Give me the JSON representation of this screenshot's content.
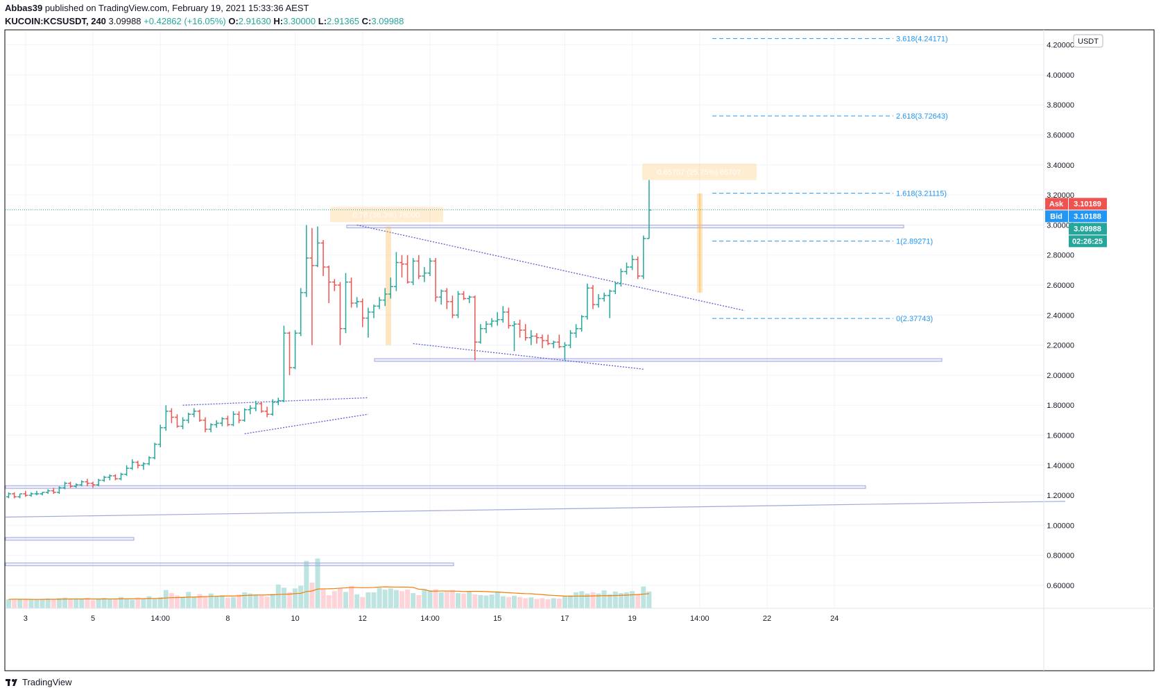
{
  "header": {
    "author": "Abbas39",
    "published_text": " published on TradingView.com, February 19, 2021 15:33:36 AEST",
    "symbol": "KUCOIN:KCSUSDT, 240",
    "last": "3.09988",
    "change": "+0.42862 (+16.05%)",
    "o_label": "O:",
    "o_value": "2.91630",
    "h_label": "H:",
    "h_value": "3.30000",
    "l_label": "L:",
    "l_value": "2.91365",
    "c_label": "C:",
    "c_value": "3.09988"
  },
  "footer": {
    "brand": "TradingView"
  },
  "colors": {
    "up": "#26a69a",
    "down": "#ef5350",
    "trend": "#5b5bd6",
    "fib": "#2196f3",
    "ma": "#f57c00",
    "ask": "#ef5350",
    "bid": "#2196f3"
  },
  "chart_data": {
    "type": "candlestick",
    "currency": "USDT",
    "price_ticks": [
      "0.60000",
      "0.80000",
      "1.00000",
      "1.20000",
      "1.40000",
      "1.60000",
      "1.80000",
      "2.00000",
      "2.20000",
      "2.40000",
      "2.60000",
      "2.80000",
      "3.00000",
      "3.20000",
      "3.40000",
      "3.60000",
      "3.80000",
      "4.00000",
      "4.20000"
    ],
    "ylim": [
      0.45,
      4.28
    ],
    "time_ticks": [
      "3",
      "5",
      "14:00",
      "8",
      "10",
      "12",
      "14:00",
      "15",
      "17",
      "19",
      "14:00",
      "22",
      "24"
    ],
    "time_tick_index": [
      3,
      15,
      27,
      39,
      51,
      63,
      75,
      87,
      99,
      111,
      123,
      135,
      147
    ],
    "candles": [
      [
        1.19,
        1.22,
        1.18,
        1.21
      ],
      [
        1.21,
        1.22,
        1.18,
        1.19
      ],
      [
        1.19,
        1.21,
        1.18,
        1.21
      ],
      [
        1.21,
        1.23,
        1.19,
        1.2
      ],
      [
        1.2,
        1.22,
        1.19,
        1.21
      ],
      [
        1.21,
        1.23,
        1.2,
        1.21
      ],
      [
        1.21,
        1.22,
        1.2,
        1.22
      ],
      [
        1.22,
        1.24,
        1.21,
        1.23
      ],
      [
        1.23,
        1.25,
        1.21,
        1.22
      ],
      [
        1.22,
        1.26,
        1.21,
        1.25
      ],
      [
        1.25,
        1.29,
        1.24,
        1.28
      ],
      [
        1.28,
        1.29,
        1.25,
        1.26
      ],
      [
        1.26,
        1.28,
        1.25,
        1.27
      ],
      [
        1.27,
        1.3,
        1.26,
        1.29
      ],
      [
        1.29,
        1.31,
        1.26,
        1.28
      ],
      [
        1.28,
        1.29,
        1.25,
        1.27
      ],
      [
        1.27,
        1.31,
        1.26,
        1.3
      ],
      [
        1.3,
        1.33,
        1.29,
        1.32
      ],
      [
        1.32,
        1.34,
        1.3,
        1.33
      ],
      [
        1.33,
        1.34,
        1.3,
        1.31
      ],
      [
        1.31,
        1.35,
        1.3,
        1.34
      ],
      [
        1.34,
        1.4,
        1.33,
        1.38
      ],
      [
        1.38,
        1.44,
        1.37,
        1.42
      ],
      [
        1.42,
        1.43,
        1.38,
        1.4
      ],
      [
        1.4,
        1.42,
        1.37,
        1.41
      ],
      [
        1.41,
        1.46,
        1.4,
        1.45
      ],
      [
        1.45,
        1.55,
        1.44,
        1.54
      ],
      [
        1.54,
        1.67,
        1.52,
        1.65
      ],
      [
        1.65,
        1.8,
        1.63,
        1.76
      ],
      [
        1.76,
        1.78,
        1.68,
        1.72
      ],
      [
        1.72,
        1.74,
        1.65,
        1.66
      ],
      [
        1.66,
        1.72,
        1.64,
        1.7
      ],
      [
        1.7,
        1.75,
        1.68,
        1.74
      ],
      [
        1.74,
        1.78,
        1.72,
        1.76
      ],
      [
        1.76,
        1.77,
        1.69,
        1.7
      ],
      [
        1.7,
        1.72,
        1.62,
        1.64
      ],
      [
        1.64,
        1.68,
        1.62,
        1.67
      ],
      [
        1.67,
        1.7,
        1.65,
        1.68
      ],
      [
        1.68,
        1.72,
        1.66,
        1.71
      ],
      [
        1.71,
        1.73,
        1.66,
        1.67
      ],
      [
        1.67,
        1.76,
        1.66,
        1.74
      ],
      [
        1.74,
        1.76,
        1.68,
        1.7
      ],
      [
        1.7,
        1.78,
        1.69,
        1.77
      ],
      [
        1.77,
        1.8,
        1.74,
        1.78
      ],
      [
        1.78,
        1.83,
        1.76,
        1.81
      ],
      [
        1.81,
        1.82,
        1.75,
        1.76
      ],
      [
        1.76,
        1.79,
        1.72,
        1.74
      ],
      [
        1.74,
        1.84,
        1.73,
        1.82
      ],
      [
        1.82,
        1.85,
        1.8,
        1.83
      ],
      [
        1.83,
        2.33,
        1.82,
        2.28
      ],
      [
        2.28,
        2.29,
        2.0,
        2.05
      ],
      [
        2.05,
        2.3,
        2.04,
        2.28
      ],
      [
        2.28,
        2.58,
        2.26,
        2.55
      ],
      [
        2.55,
        3.0,
        2.52,
        2.78
      ],
      [
        2.78,
        2.98,
        2.2,
        2.73
      ],
      [
        2.73,
        2.99,
        2.72,
        2.88
      ],
      [
        2.88,
        2.9,
        2.66,
        2.72
      ],
      [
        2.72,
        2.73,
        2.48,
        2.62
      ],
      [
        2.62,
        2.64,
        2.56,
        2.6
      ],
      [
        2.6,
        2.62,
        2.2,
        2.31
      ],
      [
        2.31,
        2.68,
        2.28,
        2.62
      ],
      [
        2.62,
        2.65,
        2.45,
        2.48
      ],
      [
        2.48,
        2.52,
        2.45,
        2.49
      ],
      [
        2.49,
        2.51,
        2.32,
        2.38
      ],
      [
        2.38,
        2.45,
        2.25,
        2.42
      ],
      [
        2.42,
        2.47,
        2.38,
        2.46
      ],
      [
        2.46,
        2.52,
        2.44,
        2.5
      ],
      [
        2.5,
        2.58,
        2.46,
        2.54
      ],
      [
        2.54,
        2.65,
        2.51,
        2.59
      ],
      [
        2.59,
        2.82,
        2.56,
        2.75
      ],
      [
        2.75,
        2.8,
        2.65,
        2.74
      ],
      [
        2.74,
        2.8,
        2.61,
        2.62
      ],
      [
        2.62,
        2.78,
        2.6,
        2.76
      ],
      [
        2.76,
        2.8,
        2.64,
        2.66
      ],
      [
        2.66,
        2.72,
        2.62,
        2.68
      ],
      [
        2.68,
        2.78,
        2.66,
        2.76
      ],
      [
        2.76,
        2.78,
        2.49,
        2.52
      ],
      [
        2.52,
        2.57,
        2.47,
        2.56
      ],
      [
        2.56,
        2.58,
        2.44,
        2.49
      ],
      [
        2.49,
        2.53,
        2.38,
        2.4
      ],
      [
        2.4,
        2.56,
        2.38,
        2.54
      ],
      [
        2.54,
        2.56,
        2.5,
        2.51
      ],
      [
        2.51,
        2.53,
        2.48,
        2.52
      ],
      [
        2.52,
        2.53,
        2.1,
        2.22
      ],
      [
        2.22,
        2.34,
        2.21,
        2.31
      ],
      [
        2.31,
        2.36,
        2.28,
        2.34
      ],
      [
        2.34,
        2.38,
        2.32,
        2.36
      ],
      [
        2.36,
        2.42,
        2.33,
        2.37
      ],
      [
        2.37,
        2.46,
        2.35,
        2.42
      ],
      [
        2.42,
        2.45,
        2.31,
        2.33
      ],
      [
        2.33,
        2.36,
        2.16,
        2.34
      ],
      [
        2.34,
        2.37,
        2.25,
        2.3
      ],
      [
        2.3,
        2.34,
        2.23,
        2.25
      ],
      [
        2.25,
        2.3,
        2.2,
        2.26
      ],
      [
        2.26,
        2.28,
        2.21,
        2.25
      ],
      [
        2.25,
        2.27,
        2.18,
        2.23
      ],
      [
        2.23,
        2.27,
        2.2,
        2.21
      ],
      [
        2.21,
        2.23,
        2.18,
        2.22
      ],
      [
        2.22,
        2.27,
        2.18,
        2.19
      ],
      [
        2.19,
        2.22,
        2.1,
        2.2
      ],
      [
        2.2,
        2.3,
        2.18,
        2.28
      ],
      [
        2.28,
        2.34,
        2.25,
        2.31
      ],
      [
        2.31,
        2.4,
        2.29,
        2.39
      ],
      [
        2.39,
        2.61,
        2.37,
        2.58
      ],
      [
        2.58,
        2.6,
        2.44,
        2.47
      ],
      [
        2.47,
        2.54,
        2.45,
        2.51
      ],
      [
        2.51,
        2.55,
        2.49,
        2.53
      ],
      [
        2.53,
        2.57,
        2.38,
        2.56
      ],
      [
        2.56,
        2.62,
        2.54,
        2.61
      ],
      [
        2.61,
        2.71,
        2.59,
        2.69
      ],
      [
        2.69,
        2.75,
        2.67,
        2.72
      ],
      [
        2.72,
        2.8,
        2.7,
        2.77
      ],
      [
        2.77,
        2.79,
        2.64,
        2.66
      ],
      [
        2.66,
        2.93,
        2.64,
        2.91
      ],
      [
        2.91,
        3.3,
        2.91,
        3.09988
      ]
    ],
    "volumes": [
      0.46,
      0.48,
      0.45,
      0.46,
      0.44,
      0.45,
      0.47,
      0.5,
      0.46,
      0.52,
      0.55,
      0.48,
      0.51,
      0.46,
      0.54,
      0.42,
      0.47,
      0.53,
      0.46,
      0.49,
      0.58,
      0.51,
      0.44,
      0.56,
      0.49,
      0.62,
      0.52,
      0.57,
      0.94,
      0.78,
      0.66,
      0.6,
      0.84,
      0.57,
      0.73,
      0.62,
      0.76,
      0.62,
      0.67,
      0.55,
      0.58,
      0.71,
      0.82,
      0.76,
      0.71,
      0.66,
      0.6,
      0.74,
      1.22,
      1.06,
      0.82,
      1.02,
      1.16,
      2.44,
      1.32,
      2.56,
      0.98,
      0.68,
      0.88,
      1.02,
      0.84,
      1.14,
      0.72,
      0.58,
      0.82,
      0.82,
      1.06,
      0.96,
      1.02,
      0.94,
      0.88,
      0.96,
      0.78,
      0.68,
      0.98,
      0.92,
      0.98,
      0.82,
      0.84,
      0.94,
      0.78,
      0.76,
      0.86,
      0.72,
      0.68,
      0.66,
      0.71,
      0.82,
      0.62,
      0.58,
      0.64,
      0.58,
      0.52,
      0.56,
      0.48,
      0.52,
      0.46,
      0.52,
      0.5,
      0.62,
      0.66,
      0.82,
      0.88,
      0.76,
      0.82,
      0.76,
      0.92,
      0.72,
      0.86,
      0.78,
      0.82,
      0.88,
      0.72,
      1.12,
      0.86
    ],
    "fib_levels": [
      {
        "label": "3.618(4.24171)",
        "value": 4.24171
      },
      {
        "label": "2.618(3.72643)",
        "value": 3.72643
      },
      {
        "label": "1.618(3.21115)",
        "value": 3.21115
      },
      {
        "label": "1(2.89271)",
        "value": 2.89271
      },
      {
        "label": "0(2.37743)",
        "value": 2.37743
      }
    ],
    "measure_labels": [
      "0.65707 (25.75%) 65707",
      "0.78 (36.3%) 78000"
    ],
    "price_tags": [
      {
        "label": "Ask",
        "value": "3.10189",
        "color": "#ef5350"
      },
      {
        "label": "Bid",
        "value": "3.10188",
        "color": "#2196f3"
      },
      {
        "label": "",
        "value": "3.09988",
        "color": "#26a69a"
      },
      {
        "label": "",
        "value": "02:26:25",
        "color": "#26a69a"
      }
    ]
  }
}
